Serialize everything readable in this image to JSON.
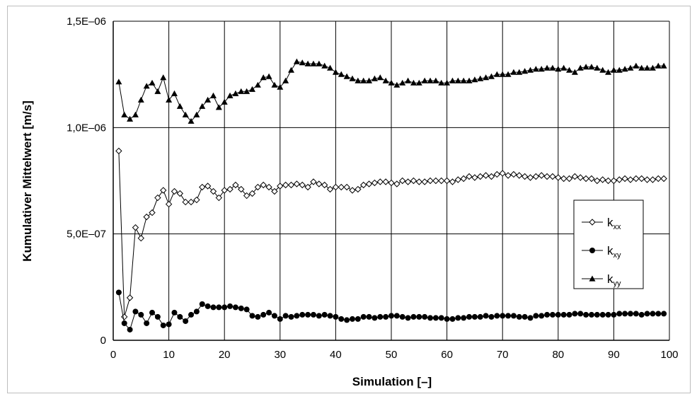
{
  "chart_data": {
    "type": "line",
    "title": "",
    "xlabel": "Simulation [–]",
    "ylabel": "Kumulativer Mittelwert [m/s]",
    "xlim": [
      0,
      100
    ],
    "ylim": [
      0,
      1.5e-06
    ],
    "x_ticks": [
      0,
      10,
      20,
      30,
      40,
      50,
      60,
      70,
      80,
      90,
      100
    ],
    "y_ticks": [
      {
        "value": 0,
        "label": "0"
      },
      {
        "value": 5e-07,
        "label": "5,0E–07"
      },
      {
        "value": 1e-06,
        "label": "1,0E–06"
      },
      {
        "value": 1.5e-06,
        "label": "1,5E–06"
      }
    ],
    "grid": "vertical and horizontal major gridlines",
    "legend_position": "right",
    "series": [
      {
        "name": "k_xx",
        "label_main": "k",
        "label_sub": "xx",
        "marker": "diamond-open",
        "x": [
          1,
          2,
          3,
          4,
          5,
          6,
          7,
          8,
          9,
          10,
          11,
          12,
          13,
          14,
          15,
          16,
          17,
          18,
          19,
          20,
          21,
          22,
          23,
          24,
          25,
          26,
          27,
          28,
          29,
          30,
          31,
          32,
          33,
          34,
          35,
          36,
          37,
          38,
          39,
          40,
          41,
          42,
          43,
          44,
          45,
          46,
          47,
          48,
          49,
          50,
          51,
          52,
          53,
          54,
          55,
          56,
          57,
          58,
          59,
          60,
          61,
          62,
          63,
          64,
          65,
          66,
          67,
          68,
          69,
          70,
          71,
          72,
          73,
          74,
          75,
          76,
          77,
          78,
          79,
          80,
          81,
          82,
          83,
          84,
          85,
          86,
          87,
          88,
          89,
          90,
          91,
          92,
          93,
          94,
          95,
          96,
          97,
          98,
          99
        ],
        "y": [
          8.9e-07,
          1.1e-07,
          2e-07,
          5.3e-07,
          4.8e-07,
          5.8e-07,
          6e-07,
          6.7e-07,
          7.05e-07,
          6.4e-07,
          7e-07,
          6.9e-07,
          6.5e-07,
          6.5e-07,
          6.6e-07,
          7.2e-07,
          7.25e-07,
          7e-07,
          6.7e-07,
          7.05e-07,
          7.1e-07,
          7.3e-07,
          7.1e-07,
          6.8e-07,
          6.9e-07,
          7.2e-07,
          7.3e-07,
          7.2e-07,
          7e-07,
          7.25e-07,
          7.3e-07,
          7.3e-07,
          7.35e-07,
          7.3e-07,
          7.2e-07,
          7.45e-07,
          7.35e-07,
          7.3e-07,
          7.1e-07,
          7.2e-07,
          7.2e-07,
          7.2e-07,
          7.05e-07,
          7.1e-07,
          7.3e-07,
          7.35e-07,
          7.4e-07,
          7.45e-07,
          7.45e-07,
          7.4e-07,
          7.35e-07,
          7.5e-07,
          7.45e-07,
          7.5e-07,
          7.45e-07,
          7.45e-07,
          7.5e-07,
          7.5e-07,
          7.5e-07,
          7.5e-07,
          7.45e-07,
          7.55e-07,
          7.6e-07,
          7.7e-07,
          7.65e-07,
          7.7e-07,
          7.75e-07,
          7.7e-07,
          7.8e-07,
          7.85e-07,
          7.75e-07,
          7.8e-07,
          7.75e-07,
          7.7e-07,
          7.65e-07,
          7.7e-07,
          7.75e-07,
          7.7e-07,
          7.7e-07,
          7.65e-07,
          7.6e-07,
          7.6e-07,
          7.7e-07,
          7.65e-07,
          7.6e-07,
          7.6e-07,
          7.5e-07,
          7.55e-07,
          7.5e-07,
          7.5e-07,
          7.55e-07,
          7.6e-07,
          7.55e-07,
          7.6e-07,
          7.6e-07,
          7.55e-07,
          7.55e-07,
          7.6e-07,
          7.6e-07
        ]
      },
      {
        "name": "k_xy",
        "label_main": "k",
        "label_sub": "xy",
        "marker": "circle-filled",
        "x": [
          1,
          2,
          3,
          4,
          5,
          6,
          7,
          8,
          9,
          10,
          11,
          12,
          13,
          14,
          15,
          16,
          17,
          18,
          19,
          20,
          21,
          22,
          23,
          24,
          25,
          26,
          27,
          28,
          29,
          30,
          31,
          32,
          33,
          34,
          35,
          36,
          37,
          38,
          39,
          40,
          41,
          42,
          43,
          44,
          45,
          46,
          47,
          48,
          49,
          50,
          51,
          52,
          53,
          54,
          55,
          56,
          57,
          58,
          59,
          60,
          61,
          62,
          63,
          64,
          65,
          66,
          67,
          68,
          69,
          70,
          71,
          72,
          73,
          74,
          75,
          76,
          77,
          78,
          79,
          80,
          81,
          82,
          83,
          84,
          85,
          86,
          87,
          88,
          89,
          90,
          91,
          92,
          93,
          94,
          95,
          96,
          97,
          98,
          99
        ],
        "y": [
          2.25e-07,
          8e-08,
          5e-08,
          1.35e-07,
          1.2e-07,
          8e-08,
          1.3e-07,
          1.1e-07,
          7e-08,
          7.5e-08,
          1.3e-07,
          1.1e-07,
          9e-08,
          1.2e-07,
          1.35e-07,
          1.7e-07,
          1.6e-07,
          1.55e-07,
          1.55e-07,
          1.55e-07,
          1.6e-07,
          1.55e-07,
          1.5e-07,
          1.45e-07,
          1.15e-07,
          1.1e-07,
          1.2e-07,
          1.3e-07,
          1.15e-07,
          1e-07,
          1.15e-07,
          1.1e-07,
          1.15e-07,
          1.2e-07,
          1.2e-07,
          1.2e-07,
          1.15e-07,
          1.2e-07,
          1.15e-07,
          1.1e-07,
          1e-07,
          9.5e-08,
          1e-07,
          1e-07,
          1.1e-07,
          1.1e-07,
          1.05e-07,
          1.1e-07,
          1.1e-07,
          1.15e-07,
          1.15e-07,
          1.1e-07,
          1.05e-07,
          1.1e-07,
          1.1e-07,
          1.1e-07,
          1.05e-07,
          1.05e-07,
          1.05e-07,
          1e-07,
          1e-07,
          1.05e-07,
          1.05e-07,
          1.1e-07,
          1.1e-07,
          1.1e-07,
          1.15e-07,
          1.1e-07,
          1.15e-07,
          1.15e-07,
          1.15e-07,
          1.15e-07,
          1.1e-07,
          1.1e-07,
          1.05e-07,
          1.15e-07,
          1.15e-07,
          1.2e-07,
          1.2e-07,
          1.2e-07,
          1.2e-07,
          1.2e-07,
          1.25e-07,
          1.25e-07,
          1.2e-07,
          1.2e-07,
          1.2e-07,
          1.2e-07,
          1.2e-07,
          1.2e-07,
          1.25e-07,
          1.25e-07,
          1.25e-07,
          1.25e-07,
          1.2e-07,
          1.25e-07,
          1.25e-07,
          1.25e-07,
          1.25e-07
        ]
      },
      {
        "name": "k_yy",
        "label_main": "k",
        "label_sub": "yy",
        "marker": "triangle-filled",
        "x": [
          1,
          2,
          3,
          4,
          5,
          6,
          7,
          8,
          9,
          10,
          11,
          12,
          13,
          14,
          15,
          16,
          17,
          18,
          19,
          20,
          21,
          22,
          23,
          24,
          25,
          26,
          27,
          28,
          29,
          30,
          31,
          32,
          33,
          34,
          35,
          36,
          37,
          38,
          39,
          40,
          41,
          42,
          43,
          44,
          45,
          46,
          47,
          48,
          49,
          50,
          51,
          52,
          53,
          54,
          55,
          56,
          57,
          58,
          59,
          60,
          61,
          62,
          63,
          64,
          65,
          66,
          67,
          68,
          69,
          70,
          71,
          72,
          73,
          74,
          75,
          76,
          77,
          78,
          79,
          80,
          81,
          82,
          83,
          84,
          85,
          86,
          87,
          88,
          89,
          90,
          91,
          92,
          93,
          94,
          95,
          96,
          97,
          98,
          99
        ],
        "y": [
          1.215e-06,
          1.06e-06,
          1.04e-06,
          1.06e-06,
          1.13e-06,
          1.195e-06,
          1.21e-06,
          1.17e-06,
          1.235e-06,
          1.13e-06,
          1.16e-06,
          1.1e-06,
          1.06e-06,
          1.03e-06,
          1.06e-06,
          1.1e-06,
          1.13e-06,
          1.15e-06,
          1.095e-06,
          1.12e-06,
          1.15e-06,
          1.16e-06,
          1.17e-06,
          1.17e-06,
          1.18e-06,
          1.2e-06,
          1.235e-06,
          1.24e-06,
          1.2e-06,
          1.19e-06,
          1.22e-06,
          1.27e-06,
          1.31e-06,
          1.305e-06,
          1.3e-06,
          1.3e-06,
          1.3e-06,
          1.29e-06,
          1.28e-06,
          1.26e-06,
          1.25e-06,
          1.24e-06,
          1.23e-06,
          1.22e-06,
          1.22e-06,
          1.22e-06,
          1.23e-06,
          1.235e-06,
          1.22e-06,
          1.21e-06,
          1.2e-06,
          1.21e-06,
          1.22e-06,
          1.21e-06,
          1.21e-06,
          1.22e-06,
          1.22e-06,
          1.22e-06,
          1.21e-06,
          1.21e-06,
          1.22e-06,
          1.22e-06,
          1.22e-06,
          1.22e-06,
          1.225e-06,
          1.23e-06,
          1.235e-06,
          1.24e-06,
          1.25e-06,
          1.25e-06,
          1.25e-06,
          1.26e-06,
          1.26e-06,
          1.265e-06,
          1.27e-06,
          1.275e-06,
          1.275e-06,
          1.28e-06,
          1.28e-06,
          1.275e-06,
          1.28e-06,
          1.27e-06,
          1.26e-06,
          1.28e-06,
          1.285e-06,
          1.285e-06,
          1.28e-06,
          1.27e-06,
          1.26e-06,
          1.27e-06,
          1.27e-06,
          1.275e-06,
          1.28e-06,
          1.29e-06,
          1.28e-06,
          1.28e-06,
          1.28e-06,
          1.29e-06,
          1.29e-06
        ]
      }
    ]
  },
  "colors": {
    "line": "#000000",
    "grid": "#000000",
    "frame": "#bdbdbd"
  }
}
